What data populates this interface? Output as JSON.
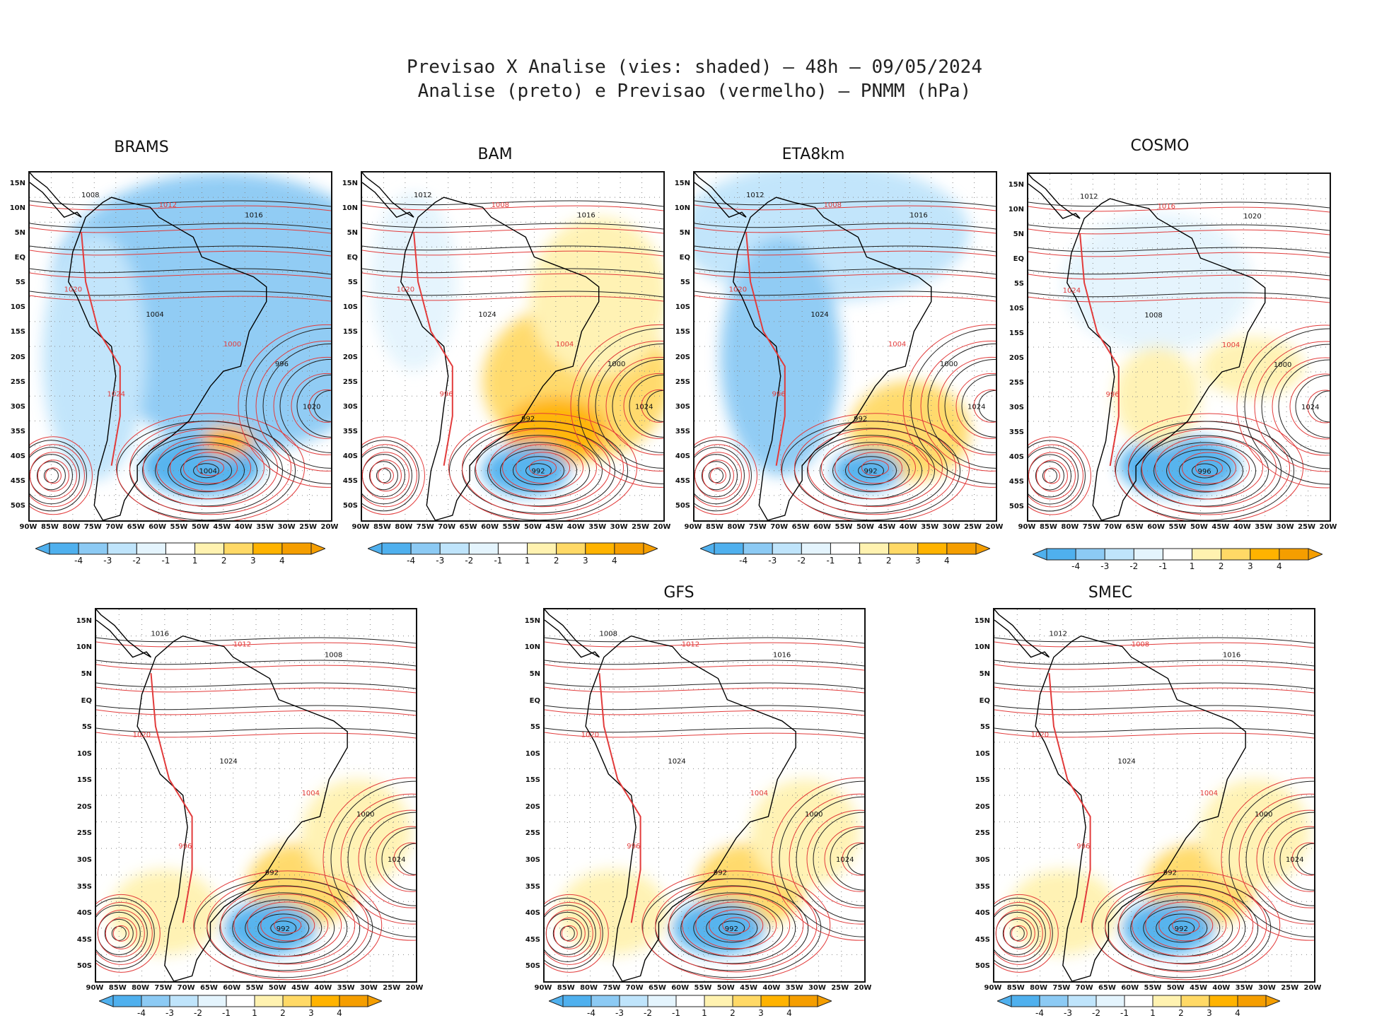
{
  "figure": {
    "title_line1": "Previsao X Analise (vies: shaded) – 48h – 09/05/2024",
    "title_line2": "Analise (preto) e Previsao (vermelho) – PNMM (hPa)"
  },
  "axes": {
    "lat_labels": [
      "15N",
      "10N",
      "5N",
      "EQ",
      "5S",
      "10S",
      "15S",
      "20S",
      "25S",
      "30S",
      "35S",
      "40S",
      "45S",
      "50S"
    ],
    "lon_labels": [
      "90W",
      "85W",
      "80W",
      "75W",
      "70W",
      "65W",
      "60W",
      "55W",
      "50W",
      "45W",
      "40W",
      "35W",
      "30W",
      "25W",
      "20W"
    ]
  },
  "colorbar": {
    "labels": [
      "-4",
      "-3",
      "-2",
      "-1",
      "1",
      "2",
      "3",
      "4"
    ],
    "colors": [
      "#4fb0ee",
      "#8ccaf4",
      "#bfe4fb",
      "#e4f4fd",
      "#ffffff",
      "#fff2b0",
      "#ffd966",
      "#ffb300",
      "#f59e00"
    ]
  },
  "panels": [
    {
      "name": "BRAMS",
      "title": "BRAMS",
      "bias": "negative-wide",
      "labels": [
        "1008",
        "1012",
        "1016",
        "1020",
        "1004",
        "1000",
        "996",
        "1024"
      ],
      "low_center": "1004",
      "high_center": "1020"
    },
    {
      "name": "BAM",
      "title": "BAM",
      "bias": "positive-wide",
      "labels": [
        "1012",
        "1008",
        "1016",
        "1020",
        "1024",
        "1004",
        "1000",
        "996",
        "992"
      ],
      "low_center": "992",
      "high_center": "1024"
    },
    {
      "name": "ETA8km",
      "title": "ETA8km",
      "bias": "negative-north",
      "labels": [
        "1012",
        "1008",
        "1016",
        "1020",
        "1024",
        "1004",
        "1000",
        "996",
        "992"
      ],
      "low_center": "992",
      "high_center": "1024"
    },
    {
      "name": "COSMO",
      "title": "COSMO",
      "bias": "mixed",
      "labels": [
        "1012",
        "1016",
        "1020",
        "1024",
        "1008",
        "1004",
        "1000",
        "996"
      ],
      "low_center": "996",
      "high_center": "1024"
    },
    {
      "name": "untitled",
      "title": "",
      "bias": "positive-south",
      "labels": [
        "1016",
        "1012",
        "1008",
        "1020",
        "1024",
        "1004",
        "1000",
        "996",
        "992"
      ],
      "low_center": "992",
      "high_center": "1024"
    },
    {
      "name": "GFS",
      "title": "GFS",
      "bias": "positive-south",
      "labels": [
        "1008",
        "1012",
        "1016",
        "1020",
        "1024",
        "1004",
        "1000",
        "996",
        "992"
      ],
      "low_center": "992",
      "high_center": "1024"
    },
    {
      "name": "SMEC",
      "title": "SMEC",
      "bias": "positive-south",
      "labels": [
        "1012",
        "1008",
        "1016",
        "1020",
        "1024",
        "1004",
        "1000",
        "996",
        "992"
      ],
      "low_center": "992",
      "high_center": "1024"
    }
  ]
}
